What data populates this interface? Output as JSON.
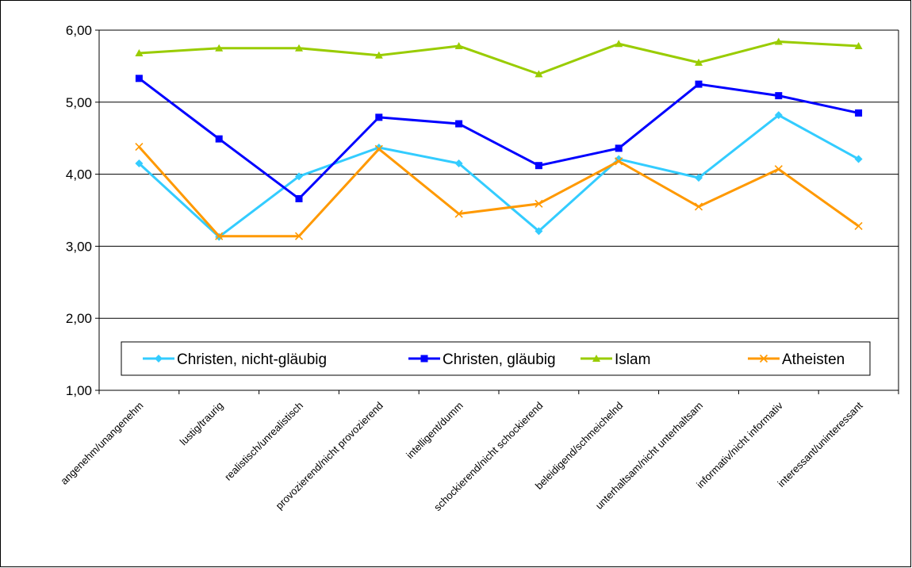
{
  "chart_data": {
    "type": "line",
    "title": "",
    "xlabel": "",
    "ylabel": "",
    "ylim": [
      1,
      6
    ],
    "yticks": [
      "1,00",
      "2,00",
      "3,00",
      "4,00",
      "5,00",
      "6,00"
    ],
    "grid": true,
    "legend_position": "inside-bottom",
    "categories": [
      "angenehm/unangenehm",
      "lustig/traurig",
      "realistisch/unrealistisch",
      "provozierend/nicht provozierend",
      "intelligent/dumm",
      "schockierend/nicht schockierend",
      "beleidigend/schmeichelnd",
      "unterhaltsam/nicht unterhaltsam",
      "informativ/nicht informativ",
      "interessant/uninteressant"
    ],
    "series": [
      {
        "name": "Christen, nicht-gläubig",
        "color": "#33CCFF",
        "marker": "diamond",
        "values": [
          4.15,
          3.13,
          3.97,
          4.37,
          4.15,
          3.21,
          4.21,
          3.95,
          4.82,
          4.21
        ]
      },
      {
        "name": "Christen, gläubig",
        "color": "#0000FF",
        "marker": "square",
        "values": [
          5.33,
          4.49,
          3.66,
          4.79,
          4.7,
          4.12,
          4.36,
          5.25,
          5.09,
          4.85
        ]
      },
      {
        "name": "Islam",
        "color": "#99CC00",
        "marker": "triangle",
        "values": [
          5.68,
          5.75,
          5.75,
          5.65,
          5.78,
          5.39,
          5.81,
          5.55,
          5.84,
          5.78
        ]
      },
      {
        "name": "Atheisten",
        "color": "#FF9900",
        "marker": "x",
        "values": [
          4.38,
          3.14,
          3.14,
          4.35,
          3.45,
          3.59,
          4.18,
          3.55,
          4.07,
          3.28
        ]
      }
    ]
  }
}
